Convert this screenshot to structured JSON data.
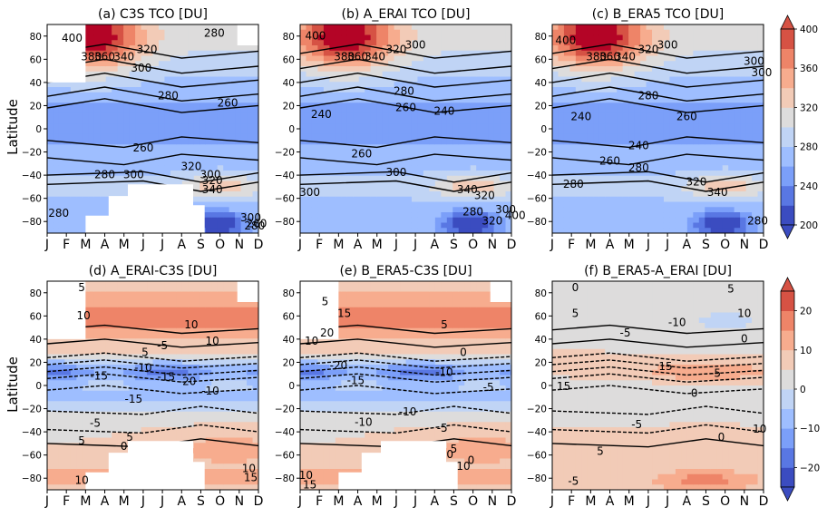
{
  "chart_data": {
    "type": "heatmap",
    "ylabel": "Latitude",
    "months": [
      "J",
      "F",
      "M",
      "A",
      "M",
      "J",
      "J",
      "A",
      "S",
      "O",
      "N",
      "D"
    ],
    "yticks": [
      80,
      60,
      40,
      20,
      0,
      -20,
      -40,
      -60,
      -80
    ],
    "panels": [
      {
        "title": "(a) C3S TCO [DU]",
        "kind": "abs",
        "contour_labels": [
          "400",
          "380",
          "360",
          "340",
          "320",
          "300",
          "280",
          "300",
          "320",
          "280",
          "260",
          "260",
          "280",
          "300",
          "320",
          "340",
          "280",
          "300",
          "260",
          "280"
        ],
        "missing_data": [
          "Jan–Feb north of 40N",
          "Mar–Oct south of 50S",
          "Nov–Dec north of 70N"
        ]
      },
      {
        "title": "(b) A_ERAI TCO [DU]",
        "kind": "abs",
        "contour_labels": [
          "400",
          "380",
          "360",
          "340",
          "320",
          "300",
          "280",
          "260",
          "240",
          "240",
          "260",
          "300",
          "300",
          "340",
          "320",
          "280",
          "300",
          "320",
          "400"
        ]
      },
      {
        "title": "(c) B_ERA5 TCO [DU]",
        "kind": "abs",
        "contour_labels": [
          "400",
          "380",
          "360",
          "340",
          "320",
          "300",
          "280",
          "260",
          "240",
          "240",
          "260",
          "280",
          "320",
          "340",
          "300",
          "300",
          "280",
          "280"
        ]
      },
      {
        "title": "(d) A_ERAI-C3S [DU]",
        "kind": "diff",
        "contour_labels": [
          "5",
          "10",
          "10",
          "10",
          "5",
          "-5",
          "-10",
          "-15",
          "-20",
          "-15",
          "-10",
          "-15",
          "-5",
          "5",
          "0",
          "5",
          "10",
          "10",
          "15"
        ],
        "missing_data": [
          "Jan–Feb north of 40N",
          "Mar–Oct south of 50S",
          "Nov–Dec north of 70N"
        ]
      },
      {
        "title": "(e) B_ERA5-C3S [DU]",
        "kind": "diff",
        "contour_labels": [
          "5",
          "15",
          "20",
          "10",
          "5",
          "0",
          "-20",
          "-15",
          "-10",
          "-10",
          "-5",
          "-10",
          "-5",
          "0",
          "5",
          "10",
          "15",
          "10",
          "0"
        ],
        "missing_data": [
          "Jan–Feb north of 40N",
          "Mar–Oct south of 50S",
          "Nov–Dec north of 70N"
        ]
      },
      {
        "title": "(f) B_ERA5-A_ERAI [DU]",
        "kind": "diff",
        "contour_labels": [
          "0",
          "5",
          "-5",
          "-10",
          "5",
          "0",
          "10",
          "15",
          "-5",
          "0",
          "-5",
          "5",
          "0",
          "10",
          "15",
          "-5"
        ]
      }
    ],
    "colorbars": [
      {
        "ticks": [
          "400",
          "360",
          "320",
          "280",
          "240",
          "200"
        ],
        "range": [
          200,
          400
        ],
        "step": 20,
        "extend": "both"
      },
      {
        "ticks": [
          "20",
          "10",
          "0",
          "−10",
          "−20"
        ],
        "range": [
          -25,
          25
        ],
        "step": 5,
        "extend": "both"
      }
    ],
    "colors": {
      "cmap": "coolwarm",
      "missing": "#ffffff"
    }
  }
}
